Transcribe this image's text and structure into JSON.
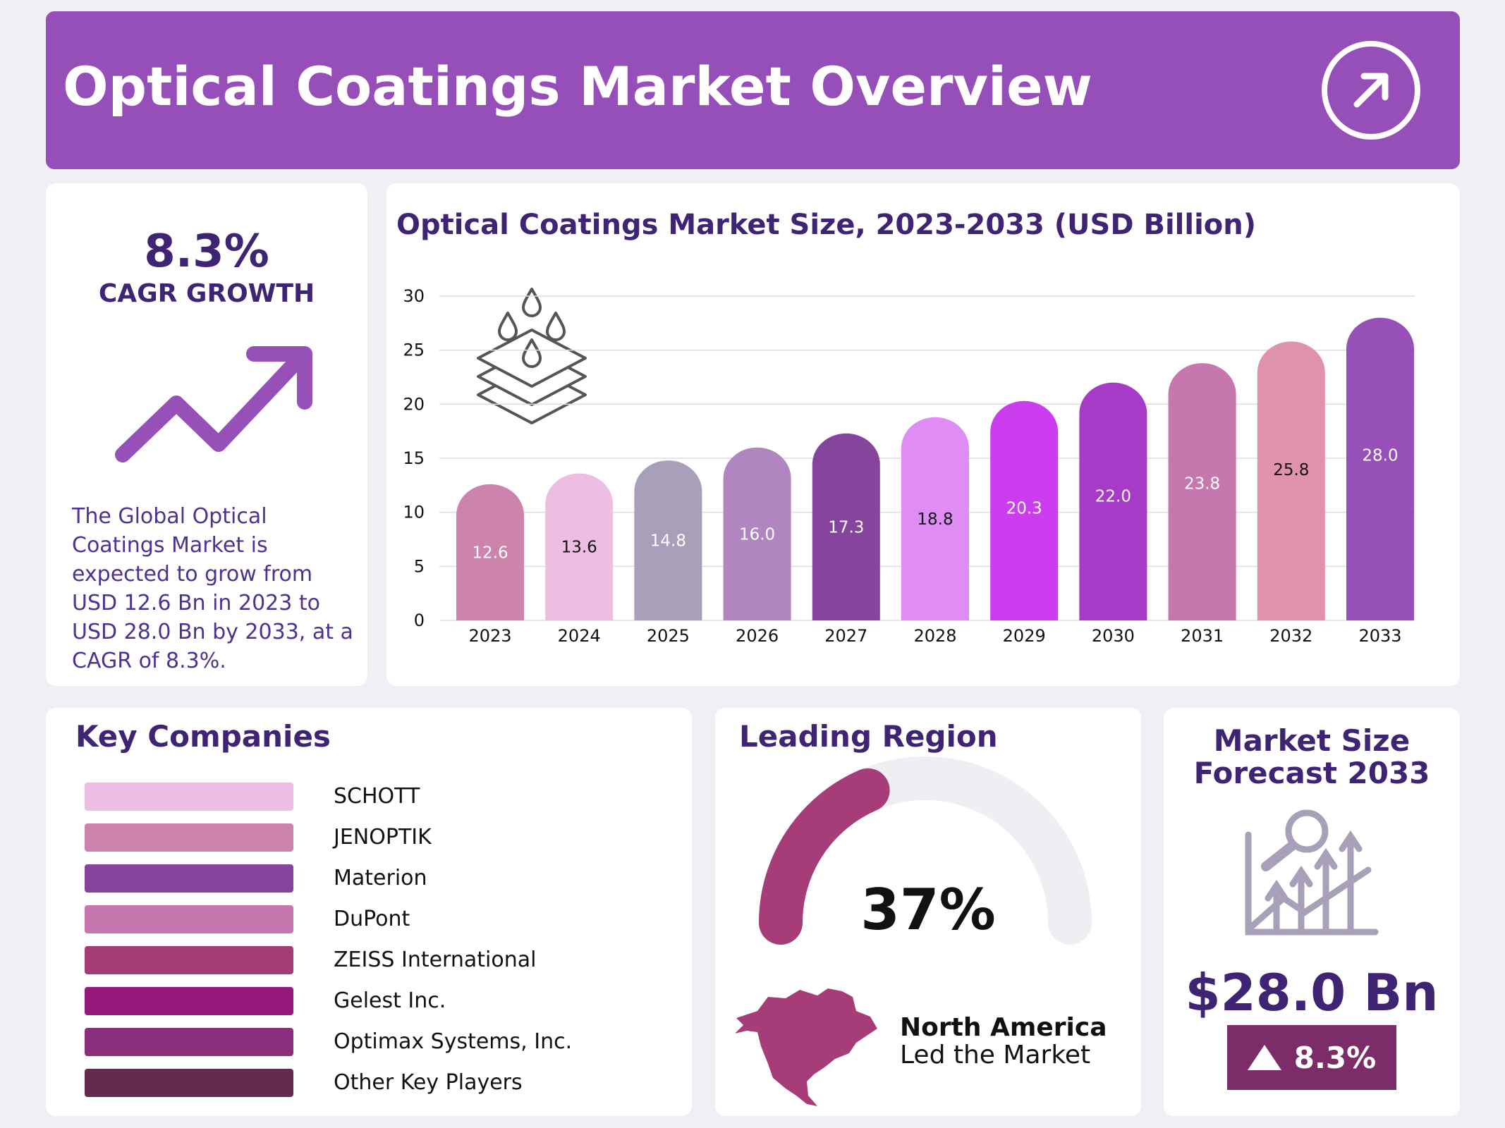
{
  "header": {
    "title": "Optical Coatings Market Overview",
    "icon": "arrow-up-right-icon"
  },
  "cagr": {
    "value": "8.3%",
    "label": "CAGR GROWTH",
    "icon": "trend-up-arrow-icon",
    "summary": "The Global Optical Coatings Market is expected to grow from USD 12.6 Bn in 2023 to USD 28.0 Bn by 2033, at a CAGR of 8.3%."
  },
  "chart_data": {
    "type": "bar",
    "title": "Optical Coatings Market Size, 2023-2033 (USD Billion)",
    "categories": [
      "2023",
      "2024",
      "2025",
      "2026",
      "2027",
      "2028",
      "2029",
      "2030",
      "2031",
      "2032",
      "2033"
    ],
    "values": [
      12.6,
      13.6,
      14.8,
      16.0,
      17.3,
      18.8,
      20.3,
      22.0,
      23.8,
      25.8,
      28.0
    ],
    "value_labels": [
      "12.6",
      "13.6",
      "14.8",
      "16.0",
      "17.3",
      "18.8",
      "20.3",
      "22.0",
      "23.8",
      "25.8",
      "28.0"
    ],
    "colors": [
      "#cc84ac",
      "#edbde2",
      "#a89fb8",
      "#b085c0",
      "#86459c",
      "#e08cf5",
      "#cc3df0",
      "#a73bc8",
      "#c677ae",
      "#df92ae",
      "#9650b8"
    ],
    "label_colors": [
      "#fff",
      "#111",
      "#fff",
      "#fff",
      "#fff",
      "#111",
      "#fff",
      "#fff",
      "#fff",
      "#111",
      "#fff"
    ],
    "yticks": [
      "0",
      "5",
      "10",
      "15",
      "20",
      "25",
      "30"
    ],
    "ylim": [
      0,
      30
    ],
    "grid": true,
    "xlabel": "",
    "ylabel": "",
    "icon": "layered-coating-drops-icon"
  },
  "companies": {
    "title": "Key Companies",
    "items": [
      {
        "name": "SCHOTT",
        "color": "#edbde3"
      },
      {
        "name": "JENOPTIK",
        "color": "#cc84ac"
      },
      {
        "name": "Materion",
        "color": "#86459c"
      },
      {
        "name": "DuPont",
        "color": "#c677ae"
      },
      {
        "name": "ZEISS International",
        "color": "#a53b74"
      },
      {
        "name": "Gelest Inc.",
        "color": "#951a7c"
      },
      {
        "name": "Optimax Systems, Inc.",
        "color": "#8b2e7c"
      },
      {
        "name": "Other Key Players",
        "color": "#652a50"
      }
    ]
  },
  "region": {
    "title": "Leading Region",
    "share": "37%",
    "share_value": 37,
    "name": "North America",
    "sub": "Led the Market",
    "gauge_color": "#a63d78",
    "map_icon": "north-america-map-icon"
  },
  "forecast": {
    "title": "Market Size Forecast 2033",
    "value": "$28.0 Bn",
    "growth": "8.3%",
    "icon": "growth-chart-magnifier-icon"
  }
}
